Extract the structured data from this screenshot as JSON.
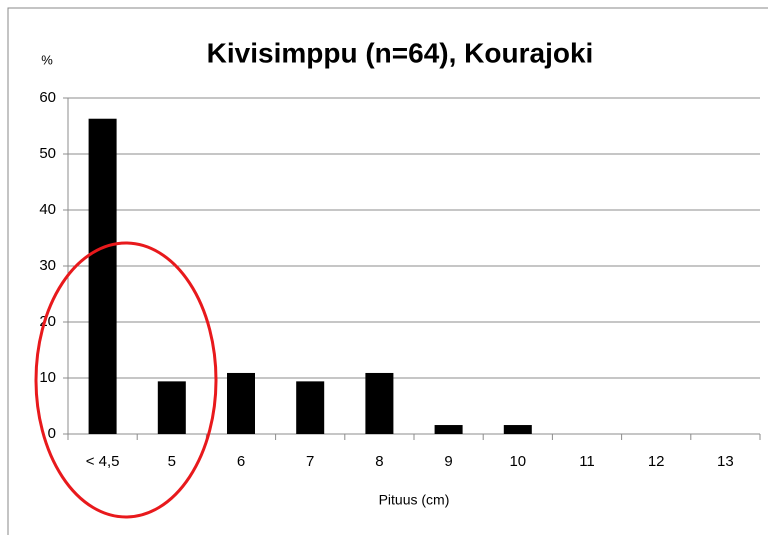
{
  "chart_data": {
    "type": "bar",
    "title": "Kivisimppu (n=64), Kourajoki",
    "y_unit_label": "%",
    "xlabel": "Pituus (cm)",
    "categories": [
      "< 4,5",
      "5",
      "6",
      "7",
      "8",
      "9",
      "10",
      "11",
      "12",
      "13"
    ],
    "values": [
      56.3,
      9.4,
      10.9,
      9.4,
      10.9,
      1.6,
      1.6,
      0,
      0,
      0
    ],
    "color": "#000000",
    "ylim": [
      0,
      60
    ],
    "yticks": [
      0,
      10,
      20,
      30,
      40,
      50,
      60
    ],
    "grid": true
  }
}
